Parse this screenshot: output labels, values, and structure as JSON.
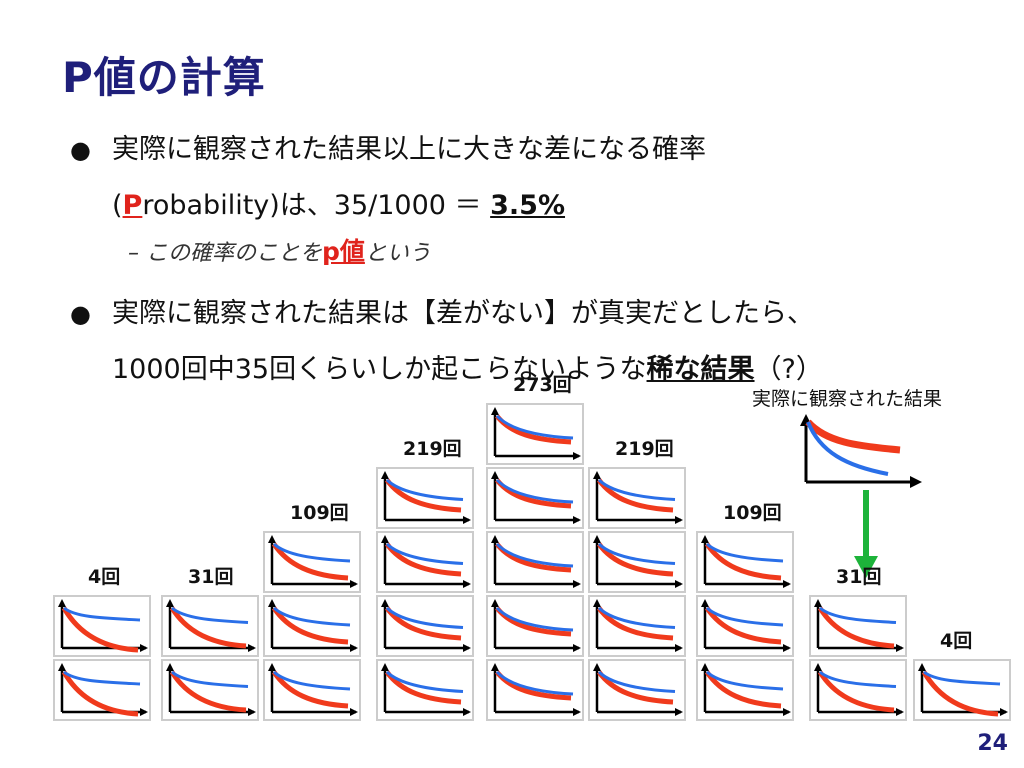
{
  "slide": {
    "title": "P値の計算",
    "bullet1": {
      "line1": "実際に観察された結果以上に大きな差になる確率",
      "line2_open": "(",
      "line2_p": "P",
      "line2_rest": "robability)は、35/1000 ＝ ",
      "line2_value": "3.5%"
    },
    "sub": {
      "pre": "– この確率のことを",
      "highlight": "p値",
      "post": "という"
    },
    "bullet2": {
      "line1": "実際に観察された結果は【差がない】が真実だとしたら、",
      "line2_pre": "1000回中35回くらいしか起こらないような",
      "line2_bold": "稀な結果",
      "line2_post": "（?）"
    },
    "observed_label": "実際に観察された結果",
    "page_number": "24"
  },
  "histogram": {
    "counts": [
      "4回",
      "31回",
      "109回",
      "219回",
      "273回",
      "219回",
      "109回",
      "31回",
      "4回"
    ]
  },
  "colors": {
    "title": "#1f1f7a",
    "red_curve": "#f03a1c",
    "blue_curve": "#2a6fe8",
    "arrow": "#1db33a"
  }
}
